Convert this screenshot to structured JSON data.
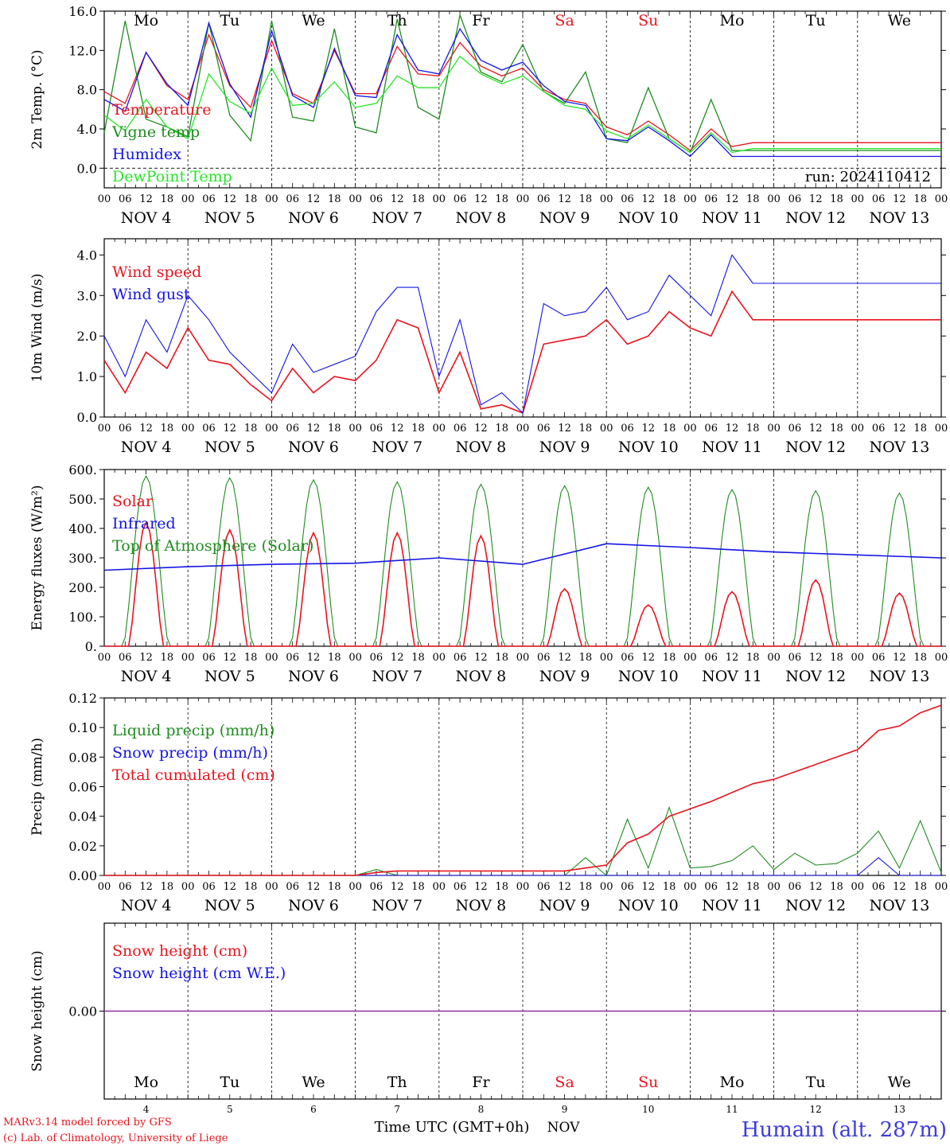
{
  "days": {
    "labels": [
      "Mo",
      "Tu",
      "We",
      "Th",
      "Fr",
      "Sa",
      "Su",
      "Mo",
      "Tu",
      "We"
    ],
    "colors": [
      "#000000",
      "#000000",
      "#000000",
      "#000000",
      "#000000",
      "#e8141e",
      "#e8141e",
      "#000000",
      "#000000",
      "#000000"
    ],
    "dates": [
      "NOV  4",
      "NOV  5",
      "NOV  6",
      "NOV  7",
      "NOV  8",
      "NOV  9",
      "NOV 10",
      "NOV 11",
      "NOV 12",
      "NOV 13"
    ],
    "day_numbers": [
      "4",
      "5",
      "6",
      "7",
      "8",
      "9",
      "10",
      "11",
      "12",
      "13"
    ],
    "hour_ticks": [
      "00",
      "06",
      "12",
      "18"
    ],
    "final_hour": "00"
  },
  "footer": {
    "credit_line1": "MARv3.14 model forced by GFS",
    "credit_line2": "(c) Lab. of Climatology, University of Liege",
    "xlabel": "Time UTC (GMT+0h)",
    "month": "NOV",
    "station": "Humain (alt. 287m)"
  },
  "chart_data": [
    {
      "id": "temp",
      "type": "line",
      "ylabel": "2m Temp. (°C)",
      "ylim": [
        -2,
        16
      ],
      "yticks": [
        "0.0",
        "4.0",
        "8.0",
        "12.0",
        "16.0"
      ],
      "ytick_values": [
        0,
        4,
        8,
        12,
        16
      ],
      "zero_line": true,
      "annotation": "run: 2024110412",
      "x_hours": [
        0,
        6,
        12,
        18,
        24,
        30,
        36,
        42,
        48,
        54,
        60,
        66,
        72,
        78,
        84,
        90,
        96,
        102,
        108,
        114,
        120,
        126,
        132,
        138,
        144,
        150,
        156,
        162,
        168,
        174,
        180,
        186,
        192,
        198,
        204,
        210,
        216,
        222,
        228,
        234,
        240
      ],
      "series": [
        {
          "name": "Temperature",
          "color": "#e8141e",
          "values": [
            7.8,
            6.6,
            11.8,
            8.4,
            7.0,
            13.6,
            8.4,
            6.2,
            13.0,
            7.6,
            6.6,
            12.0,
            7.6,
            7.6,
            12.4,
            9.6,
            9.4,
            12.8,
            10.4,
            9.4,
            10.2,
            8.0,
            7.0,
            6.6,
            4.2,
            3.4,
            4.8,
            3.4,
            1.8,
            4.0,
            2.2,
            2.6,
            2.6,
            2.6,
            2.6,
            2.6,
            2.6,
            2.6,
            2.6,
            2.6,
            2.6
          ]
        },
        {
          "name": "Vigne temp",
          "color": "#1e8c1e",
          "values": [
            3.6,
            15.0,
            5.0,
            4.2,
            3.2,
            14.8,
            5.4,
            2.8,
            15.0,
            5.2,
            4.8,
            14.2,
            4.2,
            3.6,
            15.2,
            6.2,
            5.0,
            15.6,
            9.8,
            8.8,
            12.6,
            7.8,
            6.6,
            9.8,
            3.0,
            2.6,
            8.2,
            3.0,
            1.6,
            7.0,
            1.8,
            1.8,
            1.8,
            1.8,
            1.8,
            1.8,
            1.8,
            1.8,
            1.8,
            1.8,
            1.8
          ]
        },
        {
          "name": "Humidex",
          "color": "#1414e6",
          "values": [
            7.0,
            5.8,
            11.8,
            8.6,
            6.4,
            14.8,
            8.6,
            5.2,
            14.0,
            7.4,
            6.2,
            12.2,
            7.4,
            7.2,
            13.6,
            10.0,
            9.6,
            14.2,
            11.0,
            10.0,
            10.8,
            8.4,
            6.8,
            6.4,
            3.0,
            2.8,
            4.2,
            2.8,
            1.2,
            3.4,
            1.2,
            1.2,
            1.2,
            1.2,
            1.2,
            1.2,
            1.2,
            1.2,
            1.2,
            1.2,
            1.2
          ]
        },
        {
          "name": "DewPoint Temp",
          "color": "#28e628",
          "values": [
            5.4,
            3.8,
            7.0,
            4.2,
            3.0,
            9.6,
            6.8,
            5.6,
            10.2,
            6.4,
            6.6,
            8.8,
            6.2,
            6.6,
            9.4,
            8.2,
            8.2,
            11.4,
            9.6,
            8.6,
            9.4,
            7.8,
            6.4,
            6.0,
            3.8,
            3.0,
            4.4,
            3.0,
            1.6,
            3.6,
            1.6,
            2.0,
            2.0,
            2.0,
            2.0,
            2.0,
            2.0,
            2.0,
            2.0,
            2.0,
            2.0
          ]
        }
      ]
    },
    {
      "id": "wind",
      "type": "line",
      "ylabel": "10m Wind (m/s)",
      "ylim": [
        0,
        4.4
      ],
      "yticks": [
        "0.0",
        "1.0",
        "2.0",
        "3.0",
        "4.0"
      ],
      "ytick_values": [
        0,
        1,
        2,
        3,
        4
      ],
      "x_hours": [
        0,
        6,
        12,
        18,
        24,
        30,
        36,
        42,
        48,
        54,
        60,
        66,
        72,
        78,
        84,
        90,
        96,
        102,
        108,
        114,
        120,
        126,
        132,
        138,
        144,
        150,
        156,
        162,
        168,
        174,
        180,
        186,
        192,
        198,
        204,
        210,
        216,
        222,
        228,
        234,
        240
      ],
      "series": [
        {
          "name": "Wind speed",
          "color": "#e8141e",
          "values": [
            1.4,
            0.6,
            1.6,
            1.2,
            2.2,
            1.4,
            1.3,
            0.8,
            0.4,
            1.2,
            0.6,
            1.0,
            0.9,
            1.4,
            2.4,
            2.2,
            0.6,
            1.6,
            0.2,
            0.3,
            0.1,
            1.8,
            1.9,
            2.0,
            2.4,
            1.8,
            2.0,
            2.6,
            2.2,
            2.0,
            3.1,
            2.4,
            2.4,
            2.4,
            2.4,
            2.4,
            2.4,
            2.4,
            2.4,
            2.4,
            2.4
          ]
        },
        {
          "name": "Wind gust",
          "color": "#1414e6",
          "values": [
            2.0,
            1.0,
            2.4,
            1.6,
            3.0,
            2.4,
            1.6,
            1.1,
            0.6,
            1.8,
            1.1,
            1.3,
            1.5,
            2.6,
            3.2,
            3.2,
            1.0,
            2.4,
            0.3,
            0.6,
            0.1,
            2.8,
            2.5,
            2.6,
            3.2,
            2.4,
            2.6,
            3.5,
            3.0,
            2.5,
            4.0,
            3.3,
            3.3,
            3.3,
            3.3,
            3.3,
            3.3,
            3.3,
            3.3,
            3.3,
            3.3
          ]
        }
      ]
    },
    {
      "id": "energy",
      "type": "line",
      "ylabel": "Energy fluxes (W/m²)",
      "ylim": [
        0,
        600
      ],
      "yticks": [
        "0.",
        "100.",
        "200.",
        "300.",
        "400.",
        "500.",
        "600."
      ],
      "ytick_values": [
        0,
        100,
        200,
        300,
        400,
        500,
        600
      ],
      "solar_peaks": [
        420,
        395,
        385,
        385,
        375,
        195,
        140,
        185,
        225,
        180
      ],
      "toa_peaks": [
        578,
        572,
        565,
        558,
        550,
        545,
        540,
        532,
        528,
        520
      ],
      "infrared_daily": [
        258,
        270,
        278,
        282,
        300,
        278,
        348,
        335,
        320,
        310,
        300
      ],
      "series": [
        {
          "name": "Solar",
          "color": "#e8141e"
        },
        {
          "name": "Infrared",
          "color": "#1414e6"
        },
        {
          "name": "Top of Atmosphere (Solar)",
          "color": "#1e8c1e"
        }
      ]
    },
    {
      "id": "precip",
      "type": "line",
      "ylabel": "Precip (mm/h)",
      "ylim": [
        0,
        0.12
      ],
      "yticks": [
        "0.00",
        "0.02",
        "0.04",
        "0.06",
        "0.08",
        "0.10",
        "0.12"
      ],
      "ytick_values": [
        0,
        0.02,
        0.04,
        0.06,
        0.08,
        0.1,
        0.12
      ],
      "x_hours": [
        0,
        72,
        78,
        84,
        132,
        138,
        144,
        150,
        156,
        162,
        168,
        174,
        180,
        186,
        192,
        198,
        204,
        210,
        216,
        222,
        228,
        234,
        240
      ],
      "series": [
        {
          "name": "Liquid precip (mm/h)",
          "color": "#1e8c1e",
          "values": [
            0,
            0,
            0.004,
            0,
            0,
            0.012,
            0,
            0.038,
            0.005,
            0.046,
            0.005,
            0.006,
            0.01,
            0.02,
            0.004,
            0.015,
            0.007,
            0.008,
            0.015,
            0.03,
            0.005,
            0.037,
            0.002
          ]
        },
        {
          "name": "Snow precip (mm/h)",
          "color": "#1414e6",
          "values": [
            0,
            0,
            0,
            0,
            0,
            0,
            0,
            0,
            0,
            0,
            0,
            0,
            0,
            0,
            0,
            0,
            0,
            0,
            0,
            0.012,
            0,
            0,
            0
          ]
        },
        {
          "name": "Total cumulated (cm)",
          "color": "#e8141e",
          "values": [
            0,
            0,
            0.002,
            0.003,
            0.003,
            0.005,
            0.007,
            0.022,
            0.028,
            0.04,
            0.045,
            0.05,
            0.056,
            0.062,
            0.065,
            0.07,
            0.075,
            0.08,
            0.085,
            0.098,
            0.101,
            0.11,
            0.115
          ]
        }
      ]
    },
    {
      "id": "snow",
      "type": "line",
      "ylabel": "Snow height (cm)",
      "ylim": [
        -1,
        1
      ],
      "yticks": [
        "0.00"
      ],
      "ytick_values": [
        0
      ],
      "series": [
        {
          "name": "Snow height (cm)",
          "color": "#e8141e",
          "values": [
            0,
            0
          ]
        },
        {
          "name": "Snow height (cm W.E.)",
          "color": "#1414e6",
          "values": [
            0,
            0
          ]
        }
      ],
      "line_color": "#8c2ea0"
    }
  ]
}
